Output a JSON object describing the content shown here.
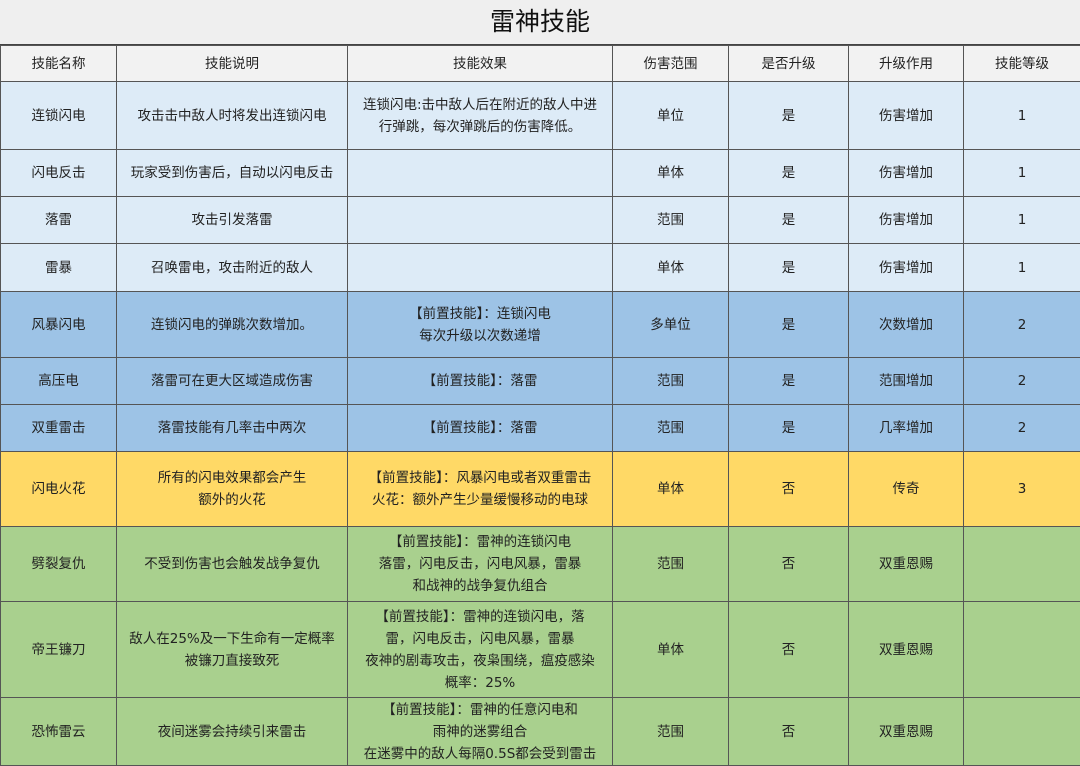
{
  "title": "雷神技能",
  "headers": [
    "技能名称",
    "技能说明",
    "技能效果",
    "伤害范围",
    "是否升级",
    "升级作用",
    "技能等级"
  ],
  "colors": {
    "tier1": "#ddebf7",
    "tier2": "#9dc3e6",
    "tier3": "#ffd966",
    "combo": "#a9d08e"
  },
  "rows": [
    {
      "name": "连锁闪电",
      "desc": "攻击击中敌人时将发出连锁闪电",
      "effect": "连锁闪电:击中敌人后在附近的敌人中进\n行弹跳，每次弹跳后的伤害降低。",
      "range": "单位",
      "upgrade": "是",
      "upgrade_effect": "伤害增加",
      "level": "1"
    },
    {
      "name": "闪电反击",
      "desc": "玩家受到伤害后，自动以闪电反击",
      "effect": "",
      "range": "单体",
      "upgrade": "是",
      "upgrade_effect": "伤害增加",
      "level": "1"
    },
    {
      "name": "落雷",
      "desc": "攻击引发落雷",
      "effect": "",
      "range": "范围",
      "upgrade": "是",
      "upgrade_effect": "伤害增加",
      "level": "1"
    },
    {
      "name": "雷暴",
      "desc": "召唤雷电，攻击附近的敌人",
      "effect": "",
      "range": "单体",
      "upgrade": "是",
      "upgrade_effect": "伤害增加",
      "level": "1"
    },
    {
      "name": "风暴闪电",
      "desc": "连锁闪电的弹跳次数增加。",
      "effect": "【前置技能】：连锁闪电\n每次升级以次数递增",
      "range": "多单位",
      "upgrade": "是",
      "upgrade_effect": "次数增加",
      "level": "2"
    },
    {
      "name": "高压电",
      "desc": "落雷可在更大区域造成伤害",
      "effect": "【前置技能】：落雷",
      "range": "范围",
      "upgrade": "是",
      "upgrade_effect": "范围增加",
      "level": "2"
    },
    {
      "name": "双重雷击",
      "desc": "落雷技能有几率击中两次",
      "effect": "【前置技能】：落雷",
      "range": "范围",
      "upgrade": "是",
      "upgrade_effect": "几率增加",
      "level": "2"
    },
    {
      "name": "闪电火花",
      "desc": "所有的闪电效果都会产生\n额外的火花",
      "effect": "【前置技能】：风暴闪电或者双重雷击\n火花：额外产生少量缓慢移动的电球",
      "range": "单体",
      "upgrade": "否",
      "upgrade_effect": "传奇",
      "level": "3"
    },
    {
      "name": "劈裂复仇",
      "desc": "不受到伤害也会触发战争复仇",
      "effect": "【前置技能】：雷神的连锁闪电\n落雷，闪电反击，闪电风暴，雷暴\n和战神的战争复仇组合",
      "range": "范围",
      "upgrade": "否",
      "upgrade_effect": "双重恩赐",
      "level": ""
    },
    {
      "name": "帝王镰刀",
      "desc": "敌人在25%及一下生命有一定概率\n被镰刀直接致死",
      "effect": "【前置技能】：雷神的连锁闪电，落\n雷，闪电反击，闪电风暴，雷暴\n夜神的剧毒攻击，夜枭围绕，瘟疫感染\n概率：25%",
      "range": "单体",
      "upgrade": "否",
      "upgrade_effect": "双重恩赐",
      "level": ""
    },
    {
      "name": "恐怖雷云",
      "desc": "夜间迷雾会持续引来雷击",
      "effect": "【前置技能】：雷神的任意闪电和\n雨神的迷雾组合\n在迷雾中的敌人每隔0.5S都会受到雷击",
      "range": "范围",
      "upgrade": "否",
      "upgrade_effect": "双重恩赐",
      "level": ""
    }
  ]
}
